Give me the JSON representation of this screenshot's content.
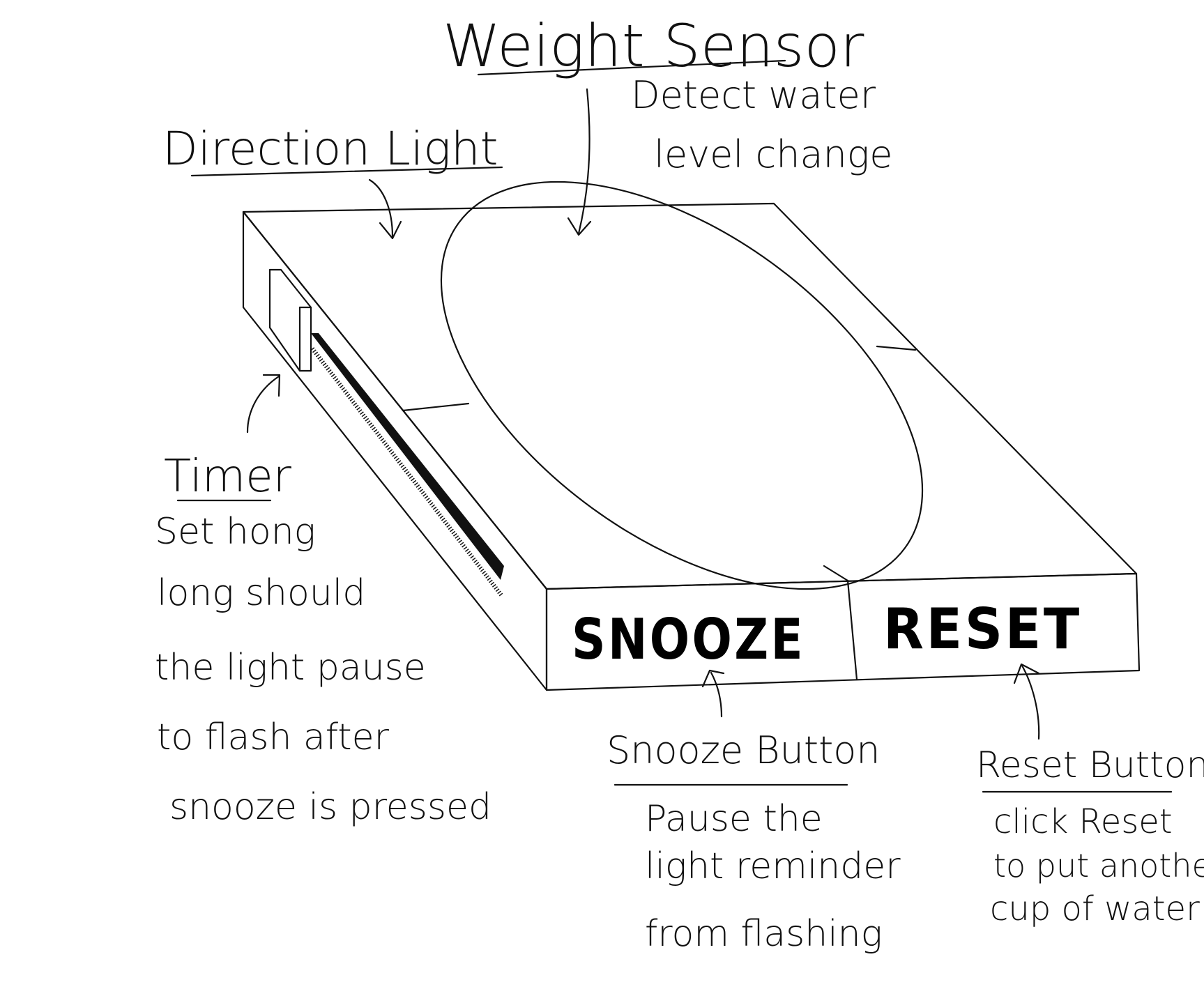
{
  "title": "Weight Sensor",
  "weight_sensor_desc": [
    "Detect water",
    "level change"
  ],
  "direction_light": "Direction Light",
  "timer": {
    "title": "Timer",
    "lines": [
      "Set hong",
      "long should",
      "the light pause",
      "to flash after",
      "snooze is pressed"
    ]
  },
  "device": {
    "snooze_label": "SNOOZE",
    "reset_label": "RESET"
  },
  "snooze_button": {
    "title": "Snooze Button",
    "lines": [
      "Pause the",
      "light reminder",
      "from flashing"
    ]
  },
  "reset_button": {
    "title": "Reset Button",
    "lines": [
      "click Reset",
      "to put another",
      "cup of water"
    ]
  },
  "colors": {
    "ink": "#111111",
    "background": "#ffffff"
  }
}
